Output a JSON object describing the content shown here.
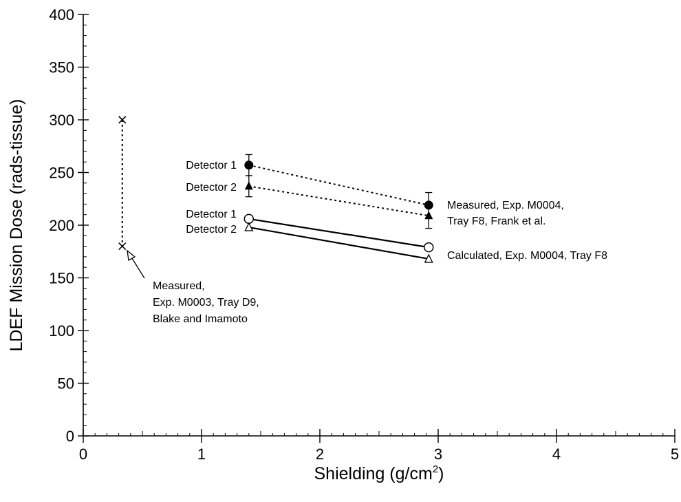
{
  "chart_data": {
    "type": "scatter",
    "xlabel": "Shielding (g/cm",
    "xlabel_sup": "2",
    "xlabel_end": ")",
    "ylabel": "LDEF Mission Dose (rads-tissue)",
    "xlim": [
      0,
      5
    ],
    "ylim": [
      0,
      400
    ],
    "x_ticks": [
      "0",
      "1",
      "2",
      "3",
      "4",
      "5"
    ],
    "y_ticks": [
      "0",
      "50",
      "100",
      "150",
      "200",
      "250",
      "300",
      "350",
      "400"
    ],
    "grid": false,
    "legend": "none",
    "series": [
      {
        "key": "m0003",
        "marker": "x",
        "line": "dotted",
        "points": [
          {
            "x": 0.33,
            "y": 300
          },
          {
            "x": 0.33,
            "y": 180
          }
        ]
      },
      {
        "key": "meas_det1",
        "marker": "filled-circle",
        "line": "dotted",
        "points": [
          {
            "x": 1.4,
            "y": 257,
            "err": 10
          },
          {
            "x": 2.92,
            "y": 219,
            "err": 12
          }
        ]
      },
      {
        "key": "meas_det2",
        "marker": "filled-triangle",
        "line": "dotted",
        "points": [
          {
            "x": 1.4,
            "y": 237,
            "err": 10
          },
          {
            "x": 2.92,
            "y": 209,
            "err": 12
          }
        ]
      },
      {
        "key": "calc_det1",
        "marker": "open-circle",
        "line": "solid",
        "points": [
          {
            "x": 1.4,
            "y": 206
          },
          {
            "x": 2.92,
            "y": 179
          }
        ]
      },
      {
        "key": "calc_det2",
        "marker": "open-triangle",
        "line": "solid",
        "points": [
          {
            "x": 1.4,
            "y": 198
          },
          {
            "x": 2.92,
            "y": 168
          }
        ]
      }
    ],
    "annotations": {
      "detector1_measured": "Detector 1",
      "detector2_measured": "Detector 2",
      "detector1_calculated": "Detector 1",
      "detector2_calculated": "Detector 2",
      "measured_m0004_line1": "Measured, Exp. M0004,",
      "measured_m0004_line2": "Tray F8, Frank et al.",
      "calculated_m0004": "Calculated, Exp. M0004, Tray F8",
      "measured_m0003_line1": "Measured,",
      "measured_m0003_line2": "Exp. M0003, Tray D9,",
      "measured_m0003_line3": "Blake and Imamoto"
    }
  }
}
